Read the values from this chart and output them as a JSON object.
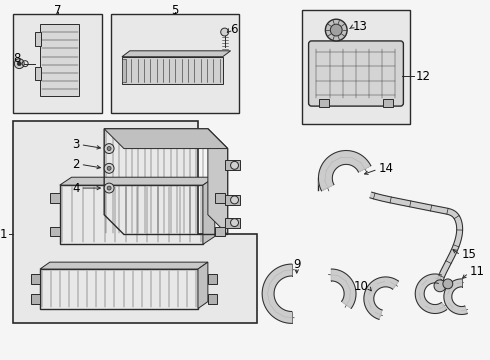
{
  "bg_color": "#f5f5f5",
  "line_color": "#2a2a2a",
  "label_color": "#000000",
  "box_bg": "#ebebeb",
  "lw_thin": 0.7,
  "lw_med": 1.0,
  "lw_thick": 1.4,
  "fig_width": 4.9,
  "fig_height": 3.6,
  "dpi": 100
}
